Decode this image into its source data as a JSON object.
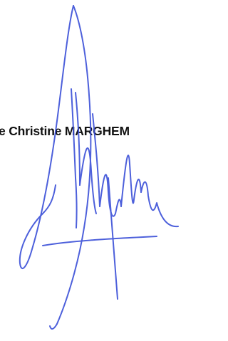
{
  "name_line": "e Christine MARGHEM"
}
